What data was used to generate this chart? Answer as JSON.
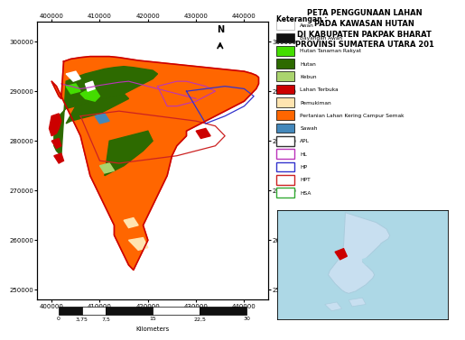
{
  "title_line1": "PETA PENGGUNAAN LAHAN",
  "title_line2": "PADA KAWASAN HUTAN",
  "title_line3": "DI KABUPATEN PAKPAK BHARAT",
  "title_line4": "PROVINSI SUMATERA UTARA 201",
  "legend_title": "Keterangan :",
  "legend_filled": [
    {
      "label": "Awan",
      "fc": "#ffffff",
      "ec": "#aaaaaa"
    },
    {
      "label": "Bayangan Awan",
      "fc": "#111111",
      "ec": "#111111"
    },
    {
      "label": "Hutan Tanaman Rakyat",
      "fc": "#44dd00",
      "ec": "#000000"
    },
    {
      "label": "Hutan",
      "fc": "#2d6a00",
      "ec": "#000000"
    },
    {
      "label": "Kebun",
      "fc": "#aad46e",
      "ec": "#000000"
    },
    {
      "label": "Lahan Terbuka",
      "fc": "#cc0000",
      "ec": "#000000"
    },
    {
      "label": "Pemukiman",
      "fc": "#ffe4b0",
      "ec": "#000000"
    },
    {
      "label": "Pertanian Lahan Kering Campur Semak",
      "fc": "#ff6600",
      "ec": "#000000"
    },
    {
      "label": "Sawah",
      "fc": "#4488bb",
      "ec": "#000000"
    }
  ],
  "legend_outline": [
    {
      "label": "APL",
      "ec": "#333333"
    },
    {
      "label": "HL",
      "ec": "#bb33bb"
    },
    {
      "label": "HP",
      "ec": "#3333cc"
    },
    {
      "label": "HPT",
      "ec": "#cc2222"
    },
    {
      "label": "HSA",
      "ec": "#33aa33"
    }
  ],
  "xtick_labels": [
    "400000",
    "410000",
    "420000",
    "430000",
    "440000"
  ],
  "ytick_labels": [
    "250000",
    "260000",
    "270000",
    "280000",
    "290000",
    "300000"
  ],
  "scale_ticks": [
    "0",
    "3,75",
    "7,5",
    "15",
    "22,5",
    "30"
  ],
  "scale_label": "Kilometers",
  "bg": "#ffffff"
}
